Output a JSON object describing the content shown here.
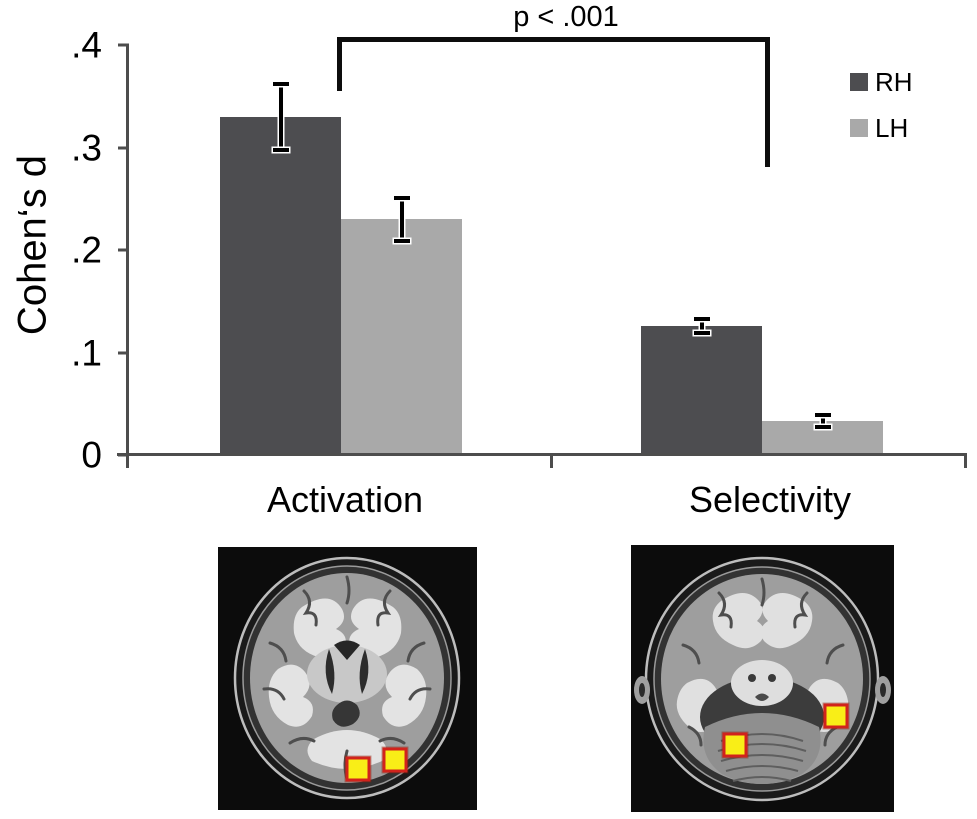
{
  "chart_data": {
    "type": "bar",
    "categories": [
      "Activation",
      "Selectivity"
    ],
    "series": [
      {
        "name": "RH",
        "color": "#4d4d50",
        "values": [
          0.33,
          0.126
        ],
        "errors": [
          0.032,
          0.007
        ]
      },
      {
        "name": "LH",
        "color": "#a9a9a9",
        "values": [
          0.23,
          0.033
        ],
        "errors": [
          0.021,
          0.006
        ]
      }
    ],
    "title": "",
    "xlabel": "",
    "ylabel": "Cohen‘s d",
    "ylim": [
      0,
      0.4
    ],
    "ytick_values": [
      0.4,
      0.3,
      0.2,
      0.1,
      0
    ],
    "ytick_labels": [
      ".4",
      ".3",
      ".2",
      ".1",
      "0"
    ],
    "grid": "off",
    "legend_position": "top-right",
    "error_bars": "black with white halo",
    "annotation": {
      "text": "p < .001",
      "connects": [
        "Activation",
        "Selectivity"
      ]
    }
  },
  "colors": {
    "axis": "#4d4d4d",
    "bracket": "#0d0d0d",
    "roi_marker_fill": "#f9ee17",
    "roi_marker_border": "#d1231c"
  },
  "brains": {
    "left_panel": {
      "icon": "axial-brain-mri",
      "roi_marker_count": 2
    },
    "right_panel": {
      "icon": "axial-brain-mri",
      "roi_marker_count": 2
    }
  }
}
